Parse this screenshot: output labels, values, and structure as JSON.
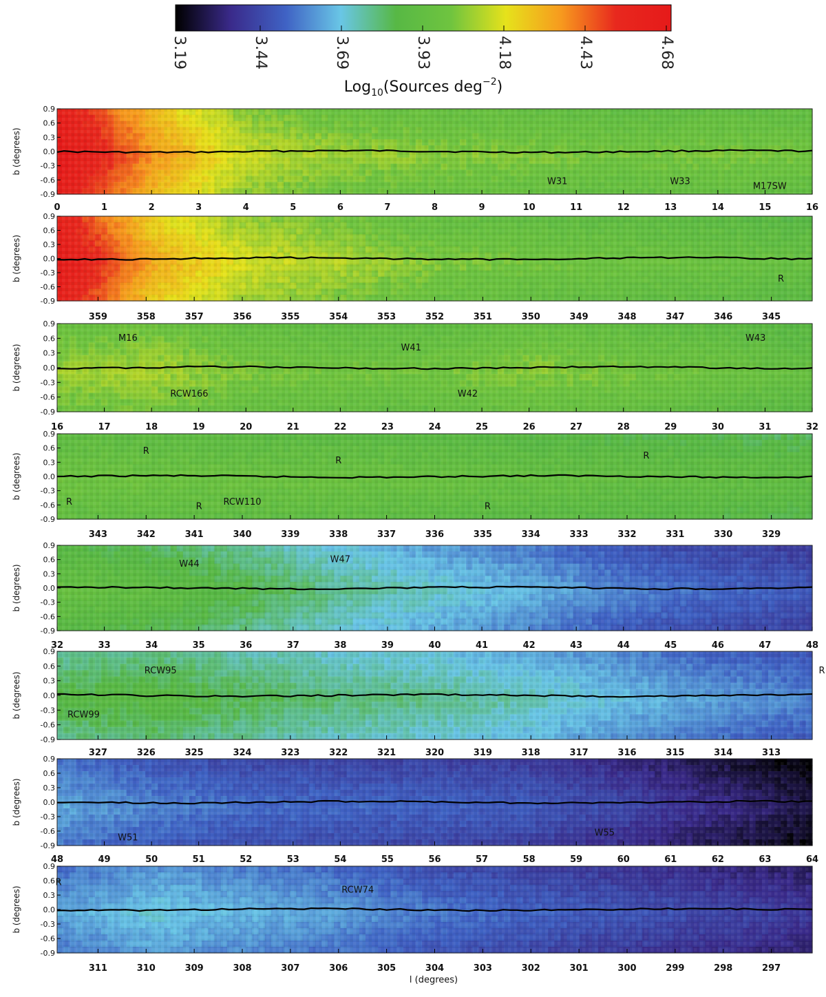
{
  "chart_data": {
    "type": "heatmap",
    "title": "",
    "colorbar": {
      "ticks": [
        "3.19",
        "3.44",
        "3.69",
        "3.93",
        "4.18",
        "4.43",
        "4.68"
      ],
      "label_base": "Log",
      "label_sub": "10",
      "label_mid": "(Sources deg",
      "label_sup": "−2",
      "label_end": ")",
      "range": [
        3.19,
        4.68
      ],
      "colors": [
        "#000000",
        "#3a2a8a",
        "#3f62c4",
        "#69c6e6",
        "#57b845",
        "#6fc43f",
        "#e6e21b",
        "#f79a1e",
        "#e8281e",
        "#e61a1a"
      ]
    },
    "ylabel": "b (degrees)",
    "xlabel": "l (degrees)",
    "ylim": [
      -0.9,
      0.9
    ],
    "yticks": [
      "0.9",
      "0.6",
      "0.3",
      "0.0",
      "-0.3",
      "-0.6",
      "-0.9"
    ],
    "panels": [
      {
        "axis_position": "below",
        "xticks": [
          "0",
          "1",
          "2",
          "3",
          "4",
          "5",
          "6",
          "7",
          "8",
          "9",
          "10",
          "11",
          "12",
          "13",
          "14",
          "15",
          "16"
        ],
        "levels": [
          4.62,
          4.3,
          4.08,
          4.02,
          4.0,
          3.98,
          3.96,
          3.97,
          3.96
        ],
        "annotations": [
          {
            "text": "W31",
            "l": 10.6,
            "b": -0.62
          },
          {
            "text": "W33",
            "l": 13.2,
            "b": -0.62
          },
          {
            "text": "M17SW",
            "l": 15.1,
            "b": -0.72
          }
        ]
      },
      {
        "axis_position": "below",
        "xticks": [
          "359",
          "358",
          "357",
          "356",
          "355",
          "354",
          "353",
          "352",
          "351",
          "350",
          "349",
          "348",
          "347",
          "346",
          "345"
        ],
        "levels": [
          4.6,
          4.25,
          4.1,
          4.05,
          3.99,
          3.96,
          3.95,
          3.93,
          3.9
        ],
        "annotations": [
          {
            "text": "R",
            "l": 344.8,
            "b": -0.42
          }
        ]
      },
      {
        "axis_position": "below",
        "xticks": [
          "16",
          "17",
          "18",
          "19",
          "20",
          "21",
          "22",
          "23",
          "24",
          "25",
          "26",
          "27",
          "28",
          "29",
          "30",
          "31",
          "32"
        ],
        "levels": [
          4.02,
          4.04,
          3.98,
          3.96,
          3.96,
          4.0,
          3.97,
          3.94,
          3.9
        ],
        "annotations": [
          {
            "text": "M16",
            "l": 17.5,
            "b": 0.62
          },
          {
            "text": "W41",
            "l": 23.5,
            "b": 0.42
          },
          {
            "text": "W43",
            "l": 30.8,
            "b": 0.62
          },
          {
            "text": "RCW166",
            "l": 18.8,
            "b": -0.52
          },
          {
            "text": "W42",
            "l": 24.7,
            "b": -0.52
          }
        ]
      },
      {
        "axis_position": "below",
        "xticks": [
          "343",
          "342",
          "341",
          "340",
          "339",
          "338",
          "337",
          "336",
          "335",
          "334",
          "333",
          "332",
          "331",
          "330",
          "329"
        ],
        "levels": [
          3.95,
          3.94,
          3.93,
          3.93,
          3.92,
          3.9,
          3.89,
          3.88,
          3.86
        ],
        "annotations": [
          {
            "text": "R",
            "l": 342.0,
            "b": 0.55
          },
          {
            "text": "R",
            "l": 338.0,
            "b": 0.35
          },
          {
            "text": "R",
            "l": 331.6,
            "b": 0.45
          },
          {
            "text": "R",
            "l": 343.6,
            "b": -0.52
          },
          {
            "text": "R",
            "l": 340.9,
            "b": -0.62
          },
          {
            "text": "RCW110",
            "l": 340.0,
            "b": -0.52
          },
          {
            "text": "R",
            "l": 334.9,
            "b": -0.62
          }
        ]
      },
      {
        "axis_position": "below",
        "xticks": [
          "32",
          "33",
          "34",
          "35",
          "36",
          "37",
          "38",
          "39",
          "40",
          "41",
          "42",
          "43",
          "44",
          "45",
          "46",
          "47",
          "48"
        ],
        "levels": [
          3.9,
          3.86,
          3.8,
          3.72,
          3.66,
          3.6,
          3.52,
          3.47,
          3.44
        ],
        "annotations": [
          {
            "text": "W44",
            "l": 34.8,
            "b": 0.52
          },
          {
            "text": "W47",
            "l": 38.0,
            "b": 0.62
          }
        ]
      },
      {
        "axis_position": "below",
        "xticks": [
          "327",
          "326",
          "325",
          "324",
          "323",
          "322",
          "321",
          "320",
          "319",
          "318",
          "317",
          "316",
          "315",
          "314",
          "313"
        ],
        "levels": [
          3.8,
          3.82,
          3.78,
          3.74,
          3.72,
          3.68,
          3.62,
          3.56,
          3.52
        ],
        "annotations": [
          {
            "text": "RCW95",
            "l": 325.7,
            "b": 0.52
          },
          {
            "text": "R",
            "l": 311.9,
            "b": 0.52
          },
          {
            "text": "RCW99",
            "l": 327.3,
            "b": -0.38
          }
        ]
      },
      {
        "axis_position": "above",
        "xticks": [
          "48",
          "49",
          "50",
          "51",
          "52",
          "53",
          "54",
          "55",
          "56",
          "57",
          "58",
          "59",
          "60",
          "61",
          "62",
          "63",
          "64"
        ],
        "levels": [
          3.58,
          3.52,
          3.48,
          3.47,
          3.46,
          3.44,
          3.38,
          3.3,
          3.22
        ],
        "annotations": [
          {
            "text": "W51",
            "l": 49.5,
            "b": -0.72
          },
          {
            "text": "W55",
            "l": 59.6,
            "b": -0.62
          }
        ]
      },
      {
        "axis_position": "below",
        "xticks": [
          "311",
          "310",
          "309",
          "308",
          "307",
          "306",
          "305",
          "304",
          "303",
          "302",
          "301",
          "300",
          "299",
          "298",
          "297"
        ],
        "levels": [
          3.58,
          3.64,
          3.6,
          3.56,
          3.5,
          3.46,
          3.42,
          3.38,
          3.34
        ],
        "annotations": [
          {
            "text": "R",
            "l": 312.0,
            "b": 0.58
          },
          {
            "text": "RCW74",
            "l": 305.6,
            "b": 0.42
          }
        ]
      }
    ]
  }
}
